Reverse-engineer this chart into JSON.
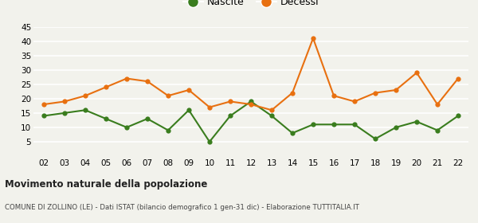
{
  "years": [
    "02",
    "03",
    "04",
    "05",
    "06",
    "07",
    "08",
    "09",
    "10",
    "11",
    "12",
    "13",
    "14",
    "15",
    "16",
    "17",
    "18",
    "19",
    "20",
    "21",
    "22"
  ],
  "nascite": [
    14,
    15,
    16,
    13,
    10,
    13,
    9,
    16,
    5,
    14,
    19,
    14,
    8,
    11,
    11,
    11,
    6,
    10,
    12,
    9,
    14
  ],
  "decessi": [
    18,
    19,
    21,
    24,
    27,
    26,
    21,
    23,
    17,
    19,
    18,
    16,
    22,
    41,
    21,
    19,
    22,
    23,
    29,
    18,
    27
  ],
  "nascite_color": "#3a7d1e",
  "decessi_color": "#e87010",
  "bg_color": "#f2f2ec",
  "grid_color": "#ffffff",
  "ylim": [
    0,
    45
  ],
  "yticks": [
    5,
    10,
    15,
    20,
    25,
    30,
    35,
    40,
    45
  ],
  "title": "Movimento naturale della popolazione",
  "subtitle": "COMUNE DI ZOLLINO (LE) - Dati ISTAT (bilancio demografico 1 gen-31 dic) - Elaborazione TUTTITALIA.IT",
  "legend_nascite": "Nascite",
  "legend_decessi": "Decessi",
  "marker_size": 4.5,
  "line_width": 1.5
}
